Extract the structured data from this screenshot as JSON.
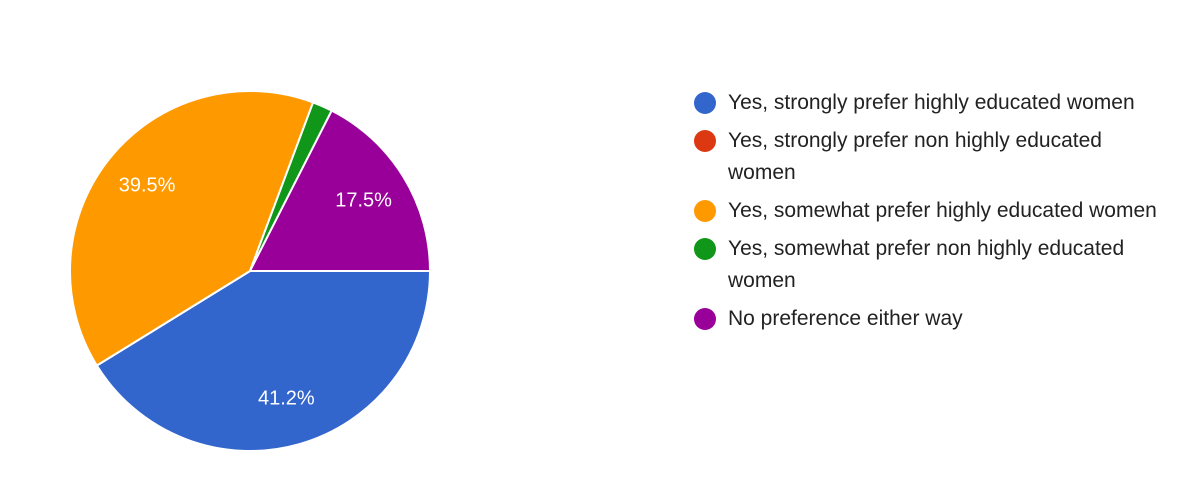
{
  "chart_data": {
    "type": "pie",
    "categories": [
      "Yes, strongly prefer highly educated women",
      "Yes, strongly prefer non highly educated women",
      "Yes, somewhat prefer highly educated women",
      "Yes, somewhat prefer non highly educated women",
      "No preference either way"
    ],
    "values": [
      41.2,
      0,
      39.5,
      1.8,
      17.5
    ],
    "value_labels": [
      "41.2%",
      null,
      "39.5%",
      null,
      "17.5%"
    ],
    "colors": [
      "#3366cc",
      "#dc3912",
      "#ff9900",
      "#109618",
      "#990099"
    ],
    "legend": "right"
  }
}
